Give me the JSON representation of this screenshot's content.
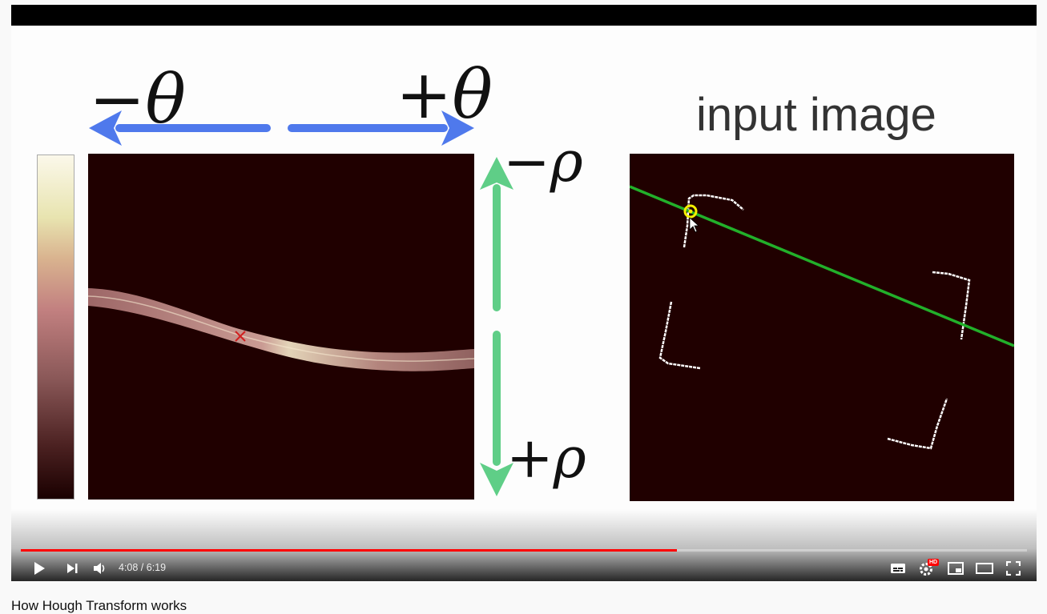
{
  "slide": {
    "neg_theta": "−θ",
    "pos_theta": "+θ",
    "neg_rho": "−ρ",
    "pos_rho": "+ρ",
    "input_title": "input image"
  },
  "player": {
    "current_time": "4:08",
    "duration": "6:19",
    "time_display": "4:08 / 6:19",
    "progress_fraction": 0.652,
    "buffered_fraction": 1.0,
    "hd_badge": "HD",
    "accent": "#ff0000"
  },
  "video": {
    "title": "How Hough Transform works"
  },
  "icons": [
    "play-icon",
    "next-icon",
    "volume-icon",
    "subtitles-icon",
    "settings-icon",
    "miniplayer-icon",
    "theater-icon",
    "fullscreen-icon"
  ]
}
